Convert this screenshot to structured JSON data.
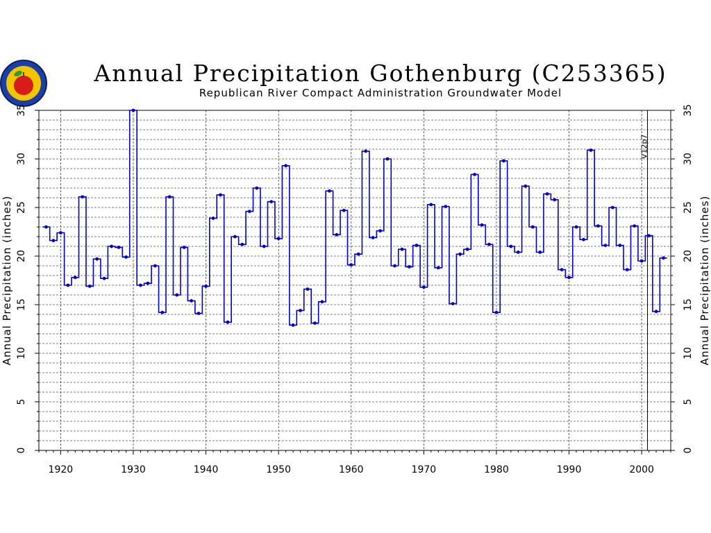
{
  "chart_data": {
    "type": "line",
    "step": true,
    "title": "Annual Precipitation Gothenburg (C253365)",
    "subtitle": "Republican River Compact Administration Groundwater Model",
    "ylabel": "Annual Precipitation (inches)",
    "xlabel": "",
    "xlim": [
      1917,
      2004
    ],
    "ylim": [
      0,
      35
    ],
    "x_ticks": [
      1920,
      1930,
      1940,
      1950,
      1960,
      1970,
      1980,
      1990,
      2000
    ],
    "y_ticks": [
      0,
      5,
      10,
      15,
      20,
      25,
      30,
      35
    ],
    "grid": true,
    "annotation": {
      "text": "V12p7",
      "x": 2000.8
    },
    "colors": {
      "series": "#0000cc",
      "axis": "#000000"
    },
    "series": [
      {
        "x": [
          1918,
          1919,
          1920,
          1921,
          1922,
          1923,
          1924,
          1925,
          1926,
          1927,
          1928,
          1929,
          1930,
          1931,
          1932,
          1933,
          1934,
          1935,
          1936,
          1937,
          1938,
          1939,
          1940,
          1941,
          1942,
          1943,
          1944,
          1945,
          1946,
          1947,
          1948,
          1949,
          1950,
          1951,
          1952,
          1953,
          1954,
          1955,
          1956,
          1957,
          1958,
          1959,
          1960,
          1961,
          1962,
          1963,
          1964,
          1965,
          1966,
          1967,
          1968,
          1969,
          1970,
          1971,
          1972,
          1973,
          1974,
          1975,
          1976,
          1977,
          1978,
          1979,
          1980,
          1981,
          1982,
          1983,
          1984,
          1985,
          1986,
          1987,
          1988,
          1989,
          1990,
          1991,
          1992,
          1993,
          1994,
          1995,
          1996,
          1997,
          1998,
          1999,
          2000,
          2001,
          2002,
          2003
        ],
        "values": [
          23.0,
          21.6,
          22.4,
          17.0,
          17.8,
          26.1,
          16.9,
          19.7,
          17.7,
          21.0,
          20.9,
          19.9,
          35.0,
          17.0,
          17.2,
          19.0,
          14.2,
          26.1,
          16.0,
          20.9,
          15.4,
          14.1,
          16.9,
          23.9,
          26.3,
          13.2,
          22.0,
          21.2,
          24.6,
          27.0,
          21.0,
          25.6,
          21.8,
          29.3,
          12.9,
          14.4,
          16.6,
          13.1,
          15.3,
          26.7,
          22.2,
          24.7,
          19.1,
          20.2,
          30.8,
          21.9,
          22.6,
          30.0,
          19.0,
          20.7,
          18.9,
          21.1,
          16.8,
          25.3,
          18.8,
          25.1,
          15.1,
          20.2,
          20.7,
          28.4,
          23.2,
          21.2,
          14.2,
          29.8,
          21.0,
          20.4,
          27.2,
          23.0,
          20.4,
          26.4,
          25.8,
          18.6,
          17.8,
          23.0,
          21.7,
          30.9,
          23.1,
          21.1,
          25.0,
          21.1,
          18.6,
          23.1,
          19.5,
          22.1,
          14.3,
          19.8
        ]
      }
    ]
  }
}
